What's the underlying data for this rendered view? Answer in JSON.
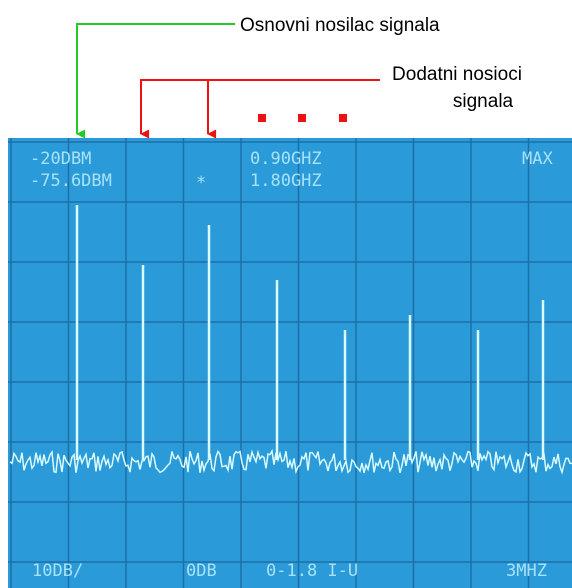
{
  "annotations": {
    "main_carrier": "Osnovni nosilac signala",
    "extra_carriers": [
      "Dodatni nosioci",
      "signala"
    ]
  },
  "screen": {
    "ref_level": "-20DBM",
    "marker_level": "-75.6DBM",
    "marker_symbol": "*",
    "center_freq": "0.90GHZ",
    "span_freq": "1.80GHZ",
    "mode": "MAX",
    "scale": "10DB/",
    "attenuation": "0DB",
    "range": "0-1.8 I-U",
    "bandwidth": "3MHZ"
  }
}
